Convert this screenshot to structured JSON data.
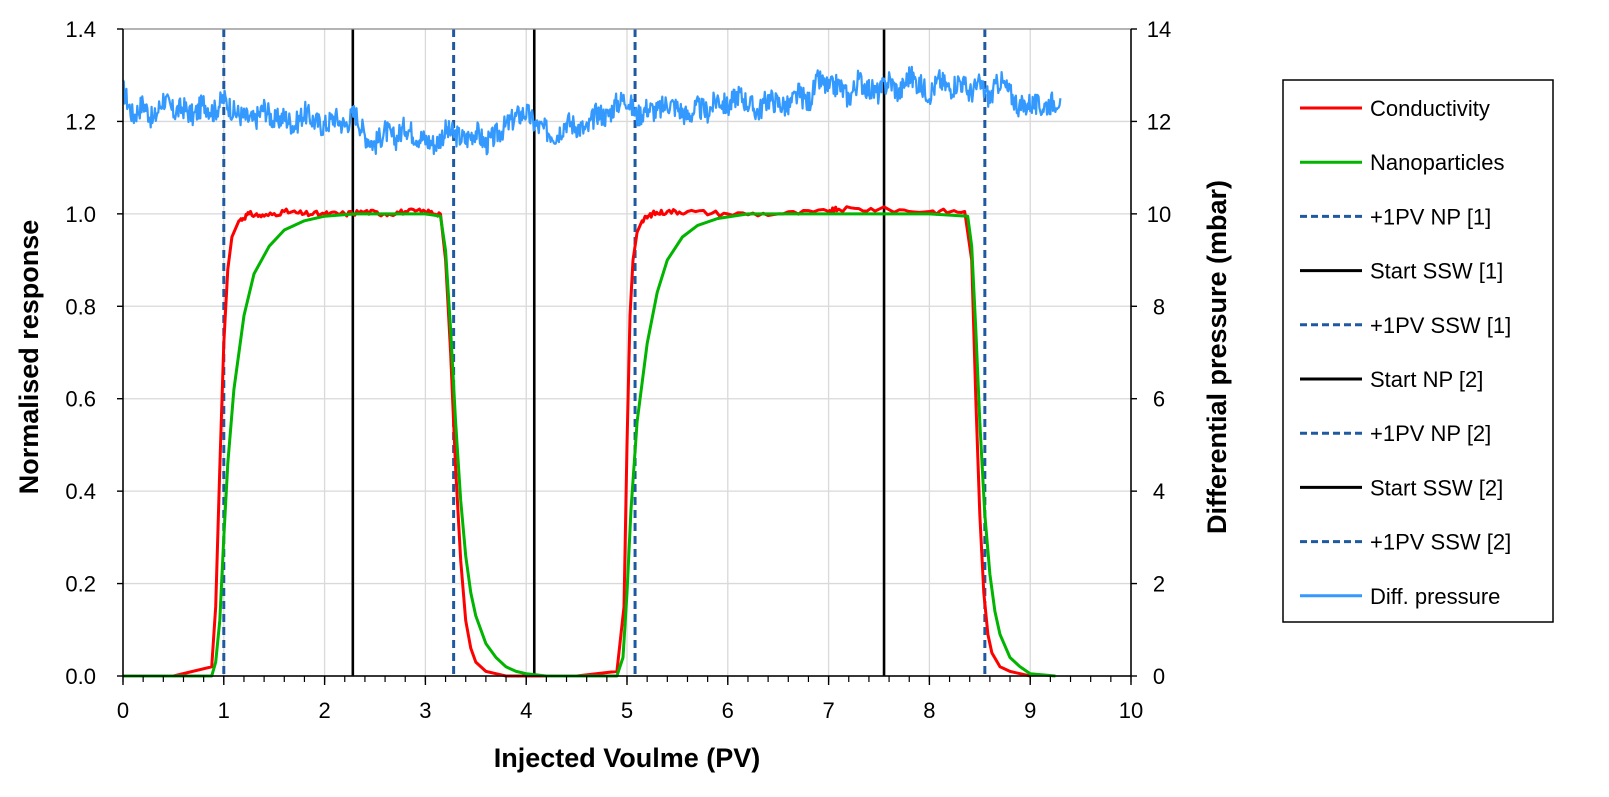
{
  "chart_data": {
    "type": "line",
    "title": "",
    "xlabel": "Injected Voulme (PV)",
    "ylabel_left": "Normalised  response",
    "ylabel_right": "Differential pressure (mbar)",
    "xlim": [
      0,
      10
    ],
    "ylim_left": [
      0,
      1.4
    ],
    "ylim_right": [
      0,
      14
    ],
    "x_ticks": [
      "0",
      "1",
      "2",
      "3",
      "4",
      "5",
      "6",
      "7",
      "8",
      "9",
      "10"
    ],
    "y_left_ticks": [
      "0.0",
      "0.2",
      "0.4",
      "0.6",
      "0.8",
      "1.0",
      "1.2",
      "1.4"
    ],
    "y_right_ticks": [
      "0",
      "2",
      "4",
      "6",
      "8",
      "10",
      "12",
      "14"
    ],
    "grid": true,
    "legend_position": "right",
    "series": [
      {
        "name": "Conductivity",
        "axis": "left",
        "color": "#ff0000",
        "style": "solid",
        "x": [
          0,
          0.5,
          0.88,
          0.92,
          0.96,
          1.0,
          1.04,
          1.08,
          1.15,
          1.25,
          1.4,
          1.6,
          1.8,
          2.0,
          2.2,
          2.4,
          2.6,
          2.8,
          3.0,
          3.15,
          3.2,
          3.25,
          3.3,
          3.35,
          3.4,
          3.45,
          3.5,
          3.6,
          3.7,
          3.8,
          4.0,
          4.5,
          4.9,
          4.97,
          5.0,
          5.03,
          5.06,
          5.1,
          5.15,
          5.25,
          5.4,
          5.6,
          6.0,
          6.5,
          7.0,
          7.1,
          7.5,
          8.0,
          8.35,
          8.42,
          8.46,
          8.5,
          8.54,
          8.58,
          8.62,
          8.7,
          8.8,
          8.9,
          9.0
        ],
        "y": [
          0.0,
          0.0,
          0.02,
          0.15,
          0.45,
          0.72,
          0.88,
          0.95,
          0.985,
          1.0,
          0.995,
          1.005,
          1.0,
          1.0,
          1.0,
          1.005,
          1.0,
          1.005,
          1.005,
          1.0,
          0.9,
          0.7,
          0.45,
          0.25,
          0.12,
          0.06,
          0.03,
          0.01,
          0.005,
          0.0,
          0.0,
          0.0,
          0.01,
          0.15,
          0.5,
          0.78,
          0.9,
          0.96,
          0.985,
          1.0,
          1.005,
          1.005,
          1.0,
          1.0,
          1.005,
          1.01,
          1.01,
          1.005,
          1.005,
          0.9,
          0.6,
          0.35,
          0.18,
          0.09,
          0.05,
          0.02,
          0.01,
          0.005,
          0.0
        ]
      },
      {
        "name": "Nanoparticles",
        "axis": "left",
        "color": "#00b400",
        "style": "solid",
        "x": [
          0,
          0.5,
          0.88,
          0.92,
          0.96,
          1.0,
          1.04,
          1.1,
          1.2,
          1.3,
          1.45,
          1.6,
          1.8,
          2.0,
          2.3,
          2.6,
          3.0,
          3.15,
          3.2,
          3.25,
          3.3,
          3.35,
          3.4,
          3.45,
          3.5,
          3.6,
          3.7,
          3.8,
          3.9,
          4.0,
          4.2,
          4.5,
          4.9,
          4.96,
          5.0,
          5.04,
          5.1,
          5.2,
          5.3,
          5.4,
          5.55,
          5.7,
          5.9,
          6.2,
          7.0,
          8.0,
          8.38,
          8.42,
          8.46,
          8.5,
          8.55,
          8.6,
          8.65,
          8.7,
          8.8,
          8.9,
          9.0,
          9.25
        ],
        "y": [
          0.0,
          0.0,
          0.0,
          0.03,
          0.12,
          0.3,
          0.46,
          0.62,
          0.78,
          0.87,
          0.93,
          0.965,
          0.985,
          0.995,
          1.0,
          1.0,
          1.0,
          0.995,
          0.92,
          0.75,
          0.55,
          0.38,
          0.26,
          0.18,
          0.13,
          0.07,
          0.04,
          0.02,
          0.01,
          0.005,
          0.0,
          0.0,
          0.0,
          0.04,
          0.18,
          0.36,
          0.55,
          0.72,
          0.83,
          0.9,
          0.95,
          0.975,
          0.99,
          1.0,
          1.0,
          1.0,
          0.995,
          0.93,
          0.75,
          0.55,
          0.35,
          0.22,
          0.14,
          0.09,
          0.04,
          0.02,
          0.005,
          0.0
        ]
      },
      {
        "name": "Diff. pressure",
        "axis": "right",
        "color": "#3399ff",
        "style": "solid",
        "x": [
          0,
          0.1,
          0.2,
          0.3,
          0.4,
          0.5,
          0.6,
          0.7,
          0.8,
          0.9,
          1.0,
          1.1,
          1.2,
          1.3,
          1.4,
          1.5,
          1.6,
          1.7,
          1.8,
          1.9,
          2.0,
          2.1,
          2.2,
          2.3,
          2.4,
          2.5,
          2.6,
          2.7,
          2.8,
          2.9,
          3.0,
          3.1,
          3.2,
          3.3,
          3.4,
          3.5,
          3.6,
          3.7,
          3.8,
          3.9,
          4.0,
          4.1,
          4.2,
          4.3,
          4.4,
          4.5,
          4.6,
          4.7,
          4.8,
          4.9,
          5.0,
          5.1,
          5.2,
          5.3,
          5.4,
          5.5,
          5.6,
          5.7,
          5.8,
          5.9,
          6.0,
          6.1,
          6.2,
          6.3,
          6.4,
          6.5,
          6.6,
          6.7,
          6.8,
          6.9,
          7.0,
          7.1,
          7.2,
          7.3,
          7.4,
          7.5,
          7.6,
          7.7,
          7.8,
          7.9,
          8.0,
          8.1,
          8.2,
          8.3,
          8.4,
          8.5,
          8.6,
          8.7,
          8.8,
          8.9,
          9.0,
          9.1,
          9.2,
          9.3
        ],
        "y": [
          12.7,
          12.1,
          12.4,
          12.0,
          12.5,
          12.2,
          12.3,
          12.1,
          12.4,
          12.2,
          12.5,
          12.2,
          12.1,
          12.0,
          12.3,
          12.0,
          12.1,
          11.9,
          12.2,
          12.0,
          11.9,
          12.1,
          11.9,
          12.2,
          11.7,
          11.5,
          11.8,
          11.6,
          11.9,
          11.7,
          11.6,
          11.5,
          11.8,
          11.7,
          11.6,
          11.8,
          11.5,
          11.7,
          11.9,
          12.1,
          12.2,
          11.9,
          11.8,
          11.7,
          12.0,
          11.9,
          11.8,
          12.2,
          12.1,
          12.4,
          12.5,
          12.1,
          12.3,
          12.2,
          12.4,
          12.3,
          12.1,
          12.3,
          12.2,
          12.5,
          12.3,
          12.6,
          12.4,
          12.2,
          12.5,
          12.4,
          12.3,
          12.6,
          12.4,
          12.9,
          12.7,
          12.8,
          12.5,
          12.9,
          12.7,
          12.6,
          12.9,
          12.6,
          13.0,
          12.8,
          12.6,
          12.9,
          12.7,
          12.9,
          12.6,
          12.8,
          12.5,
          12.9,
          12.6,
          12.3,
          12.4,
          12.3,
          12.4,
          12.5
        ]
      }
    ],
    "vertical_markers": [
      {
        "name": "+1PV NP [1]",
        "x": 1.0,
        "color": "#1f5aa0",
        "style": "dashed"
      },
      {
        "name": "Start SSW [1]",
        "x": 2.28,
        "color": "#000000",
        "style": "solid"
      },
      {
        "name": "+1PV SSW [1]",
        "x": 3.28,
        "color": "#1f5aa0",
        "style": "dashed"
      },
      {
        "name": "Start NP [2]",
        "x": 4.08,
        "color": "#000000",
        "style": "solid"
      },
      {
        "name": "+1PV NP [2]",
        "x": 5.08,
        "color": "#1f5aa0",
        "style": "dashed"
      },
      {
        "name": "Start SSW [2]",
        "x": 7.55,
        "color": "#000000",
        "style": "solid"
      },
      {
        "name": "+1PV SSW [2]",
        "x": 8.55,
        "color": "#1f5aa0",
        "style": "dashed"
      }
    ],
    "legend": [
      {
        "label": "Conductivity",
        "color": "#ff0000",
        "style": "solid"
      },
      {
        "label": "Nanoparticles",
        "color": "#00b400",
        "style": "solid"
      },
      {
        "label": "+1PV NP [1]",
        "color": "#1f5aa0",
        "style": "dashed"
      },
      {
        "label": "Start SSW [1]",
        "color": "#000000",
        "style": "solid"
      },
      {
        "label": "+1PV SSW [1]",
        "color": "#1f5aa0",
        "style": "dashed"
      },
      {
        "label": "Start NP [2]",
        "color": "#000000",
        "style": "solid"
      },
      {
        "label": "+1PV NP [2]",
        "color": "#1f5aa0",
        "style": "dashed"
      },
      {
        "label": "Start SSW [2]",
        "color": "#000000",
        "style": "solid"
      },
      {
        "label": "+1PV SSW [2]",
        "color": "#1f5aa0",
        "style": "dashed"
      },
      {
        "label": "Diff. pressure",
        "color": "#3399ff",
        "style": "solid"
      }
    ]
  }
}
